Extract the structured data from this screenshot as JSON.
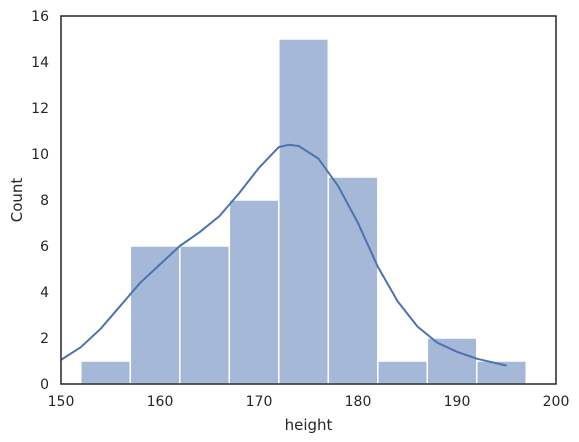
{
  "chart_data": {
    "type": "bar",
    "xlabel": "height",
    "ylabel": "Count",
    "xlim": [
      150,
      200
    ],
    "ylim": [
      0,
      16
    ],
    "xticks": [
      150,
      160,
      170,
      180,
      190,
      200
    ],
    "yticks": [
      0,
      2,
      4,
      6,
      8,
      10,
      12,
      14,
      16
    ],
    "grid": false,
    "bins": [
      {
        "start": 152,
        "end": 157,
        "count": 1
      },
      {
        "start": 157,
        "end": 162,
        "count": 6
      },
      {
        "start": 162,
        "end": 167,
        "count": 6
      },
      {
        "start": 167,
        "end": 172,
        "count": 8
      },
      {
        "start": 172,
        "end": 177,
        "count": 15
      },
      {
        "start": 177,
        "end": 182,
        "count": 9
      },
      {
        "start": 182,
        "end": 187,
        "count": 1
      },
      {
        "start": 187,
        "end": 192,
        "count": 2
      },
      {
        "start": 192,
        "end": 197,
        "count": 1
      }
    ],
    "kde": {
      "x": [
        150,
        152,
        154,
        156,
        158,
        160,
        162,
        164,
        166,
        168,
        170,
        172,
        173,
        174,
        176,
        178,
        180,
        182,
        184,
        186,
        188,
        190,
        192,
        194,
        195
      ],
      "y": [
        1.05,
        1.6,
        2.4,
        3.4,
        4.4,
        5.2,
        6.0,
        6.6,
        7.3,
        8.3,
        9.4,
        10.3,
        10.4,
        10.35,
        9.8,
        8.6,
        7.0,
        5.1,
        3.6,
        2.5,
        1.8,
        1.4,
        1.1,
        0.9,
        0.8
      ]
    },
    "colors": {
      "bar_fill": "#a5b8d8",
      "bar_edge": "#ffffff",
      "kde_line": "#4c72b0",
      "axes": "#262626"
    }
  }
}
